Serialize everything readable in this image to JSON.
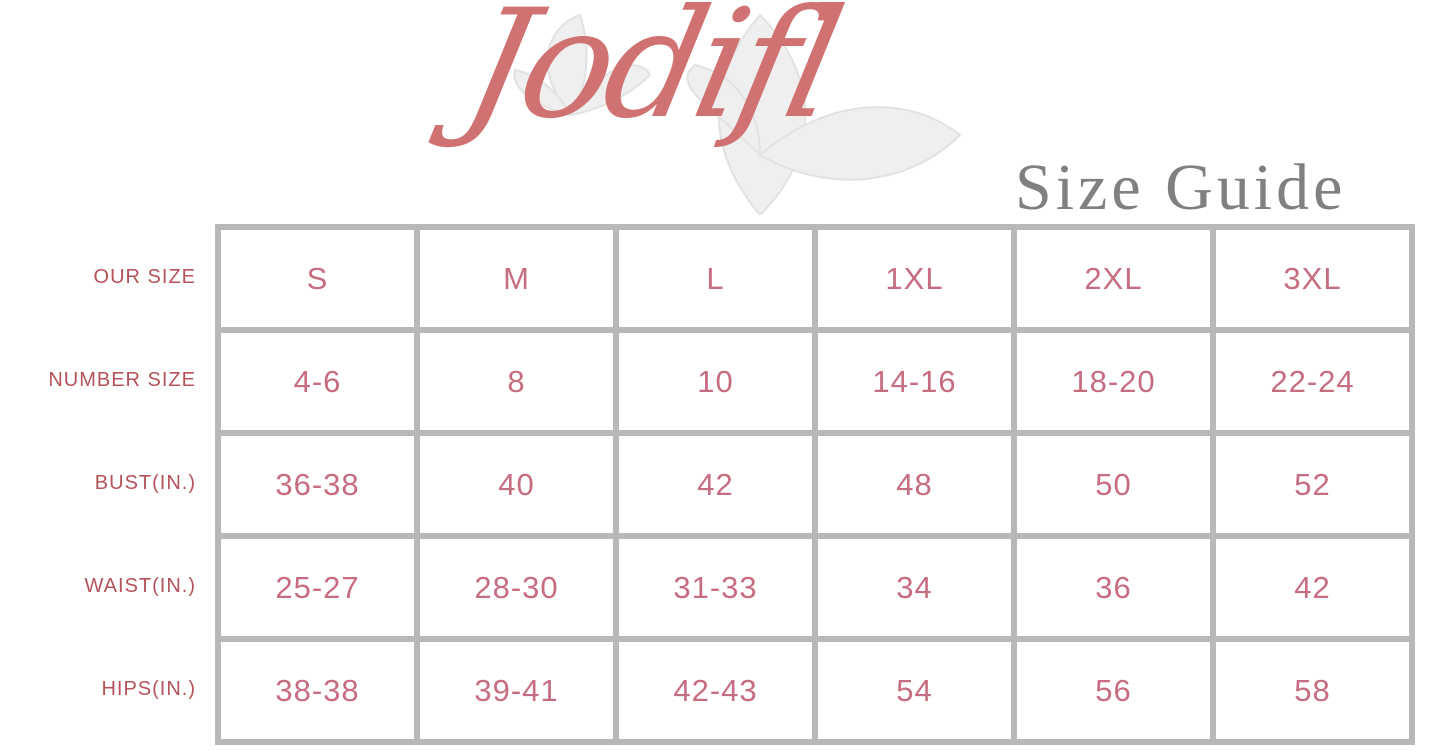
{
  "brand": {
    "logo_text": "Jodifl",
    "title": "Size Guide",
    "logo_color": "#d07272",
    "title_color": "#808080"
  },
  "colors": {
    "label": "#b5535a",
    "value": "#c66d80",
    "grid": "#b8b8b8"
  },
  "rows": [
    {
      "label": "OUR SIZE",
      "values": [
        "S",
        "M",
        "L",
        "1XL",
        "2XL",
        "3XL"
      ]
    },
    {
      "label": "NUMBER SIZE",
      "values": [
        "4-6",
        "8",
        "10",
        "14-16",
        "18-20",
        "22-24"
      ]
    },
    {
      "label": "BUST(IN.)",
      "values": [
        "36-38",
        "40",
        "42",
        "48",
        "50",
        "52"
      ]
    },
    {
      "label": "WAIST(IN.)",
      "values": [
        "25-27",
        "28-30",
        "31-33",
        "34",
        "36",
        "42"
      ]
    },
    {
      "label": "HIPS(IN.)",
      "values": [
        "38-38",
        "39-41",
        "42-43",
        "54",
        "56",
        "58"
      ]
    }
  ]
}
